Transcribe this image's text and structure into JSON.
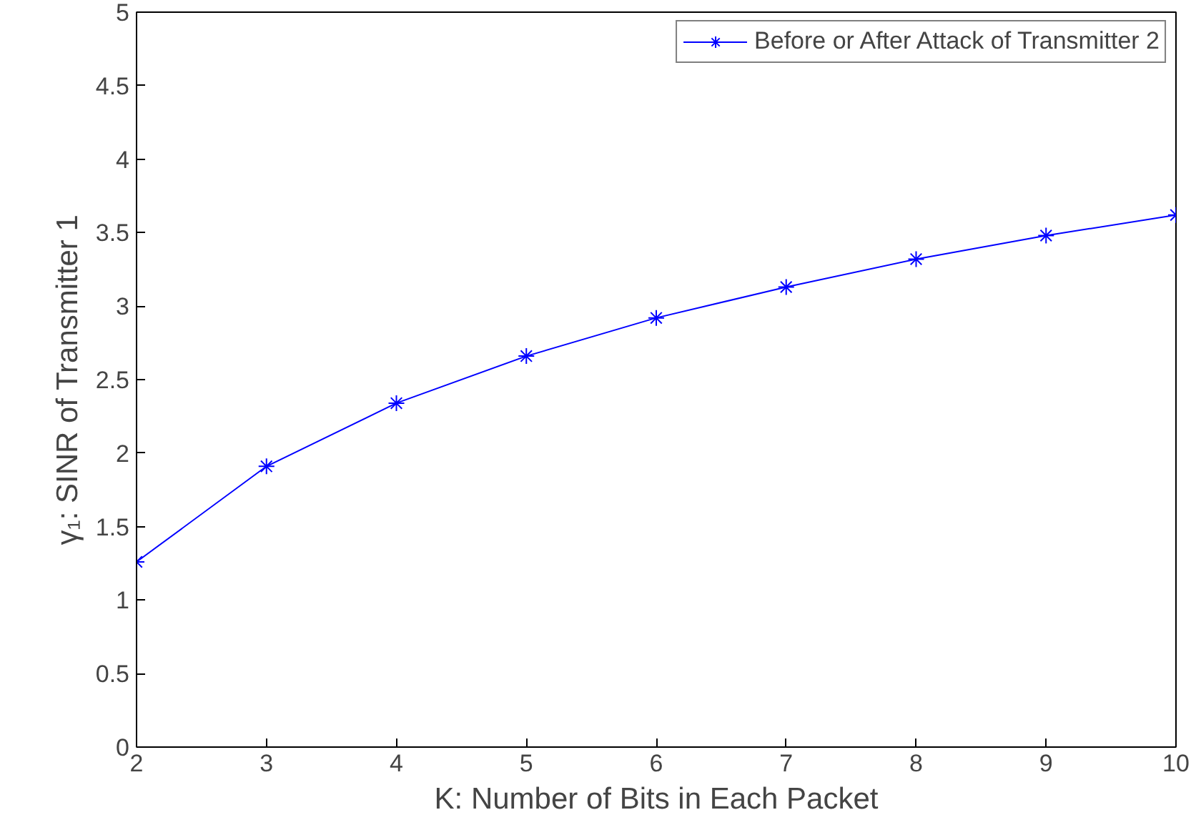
{
  "chart_data": {
    "type": "line",
    "xlabel": "K: Number of Bits in Each Packet",
    "ylabel": "γ₁: SINR of Transmitter 1",
    "x": [
      2,
      3,
      4,
      5,
      6,
      7,
      8,
      9,
      10
    ],
    "series": [
      {
        "name": "Before or After Attack of Transmitter 2",
        "color": "#0000ff",
        "values": [
          1.26,
          1.91,
          2.34,
          2.66,
          2.92,
          3.13,
          3.32,
          3.48,
          3.62
        ]
      }
    ],
    "xlim": [
      2,
      10
    ],
    "xticks": [
      2,
      3,
      4,
      5,
      6,
      7,
      8,
      9,
      10
    ],
    "ylim": [
      0,
      5
    ],
    "yticks": [
      0,
      0.5,
      1,
      1.5,
      2,
      2.5,
      3,
      3.5,
      4,
      4.5,
      5
    ],
    "grid": false,
    "legend": "top right",
    "marker": "cross",
    "line_style": "solid"
  }
}
